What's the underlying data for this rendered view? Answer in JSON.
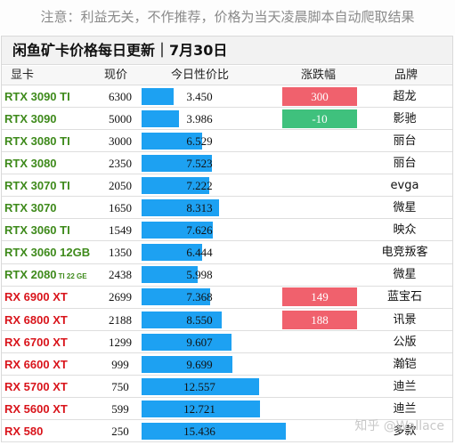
{
  "notice": "注意：利益无关，不作推荐，价格为当天凌晨脚本自动爬取结果",
  "title": "闲鱼矿卡价格每日更新｜7月30日",
  "headers": {
    "model": "显卡",
    "price": "现价",
    "ratio": "今日性价比",
    "change": "涨跌幅",
    "brand": "品牌"
  },
  "colors": {
    "nvidia_text": "#3e8a1b",
    "amd_text": "#d9141b",
    "bar": "#1da1f2",
    "rise_bg": "#f0616d",
    "fall_bg": "#3fc17d"
  },
  "chart_data": {
    "type": "table",
    "title": "闲鱼矿卡价格每日更新｜7月30日",
    "columns": [
      "显卡",
      "现价",
      "今日性价比",
      "涨跌幅",
      "品牌"
    ],
    "bar_column": "今日性价比",
    "bar_max": 16.7,
    "rows": [
      {
        "model": "RTX 3090 TI",
        "suffix": "",
        "vendor": "nv",
        "price": 6300,
        "ratio": "3.450",
        "change": "300",
        "brand": "超龙"
      },
      {
        "model": "RTX 3090",
        "suffix": "",
        "vendor": "nv",
        "price": 5000,
        "ratio": "3.986",
        "change": "-10",
        "brand": "影驰"
      },
      {
        "model": "RTX 3080 TI",
        "suffix": "",
        "vendor": "nv",
        "price": 3000,
        "ratio": "6.529",
        "change": "",
        "brand": "丽台"
      },
      {
        "model": "RTX 3080",
        "suffix": "",
        "vendor": "nv",
        "price": 2350,
        "ratio": "7.523",
        "change": "",
        "brand": "丽台"
      },
      {
        "model": "RTX 3070 TI",
        "suffix": "",
        "vendor": "nv",
        "price": 2050,
        "ratio": "7.222",
        "change": "",
        "brand": "evga"
      },
      {
        "model": "RTX 3070",
        "suffix": "",
        "vendor": "nv",
        "price": 1650,
        "ratio": "8.313",
        "change": "",
        "brand": "微星"
      },
      {
        "model": "RTX 3060 TI",
        "suffix": "",
        "vendor": "nv",
        "price": 1549,
        "ratio": "7.626",
        "change": "",
        "brand": "映众"
      },
      {
        "model": "RTX 3060 12GB",
        "suffix": "",
        "vendor": "nv",
        "price": 1350,
        "ratio": "6.444",
        "change": "",
        "brand": "电竞叛客"
      },
      {
        "model": "RTX 2080",
        "suffix": "TI 22 GE",
        "vendor": "nv",
        "price": 2438,
        "ratio": "5.998",
        "change": "",
        "brand": "微星"
      },
      {
        "model": "RX 6900 XT",
        "suffix": "",
        "vendor": "amd",
        "price": 2699,
        "ratio": "7.368",
        "change": "149",
        "brand": "蓝宝石"
      },
      {
        "model": "RX 6800 XT",
        "suffix": "",
        "vendor": "amd",
        "price": 2188,
        "ratio": "8.550",
        "change": "188",
        "brand": "讯景"
      },
      {
        "model": "RX 6700 XT",
        "suffix": "",
        "vendor": "amd",
        "price": 1299,
        "ratio": "9.607",
        "change": "",
        "brand": "公版"
      },
      {
        "model": "RX 6600 XT",
        "suffix": "",
        "vendor": "amd",
        "price": 999,
        "ratio": "9.699",
        "change": "",
        "brand": "瀚铠"
      },
      {
        "model": "RX 5700 XT",
        "suffix": "",
        "vendor": "amd",
        "price": 750,
        "ratio": "12.557",
        "change": "",
        "brand": "迪兰"
      },
      {
        "model": "RX 5600 XT",
        "suffix": "",
        "vendor": "amd",
        "price": 599,
        "ratio": "12.721",
        "change": "",
        "brand": "迪兰"
      },
      {
        "model": "RX 580",
        "suffix": "",
        "vendor": "amd",
        "price": 250,
        "ratio": "15.436",
        "change": "",
        "brand": "多款"
      }
    ]
  },
  "watermark": "知乎 @Wallace"
}
